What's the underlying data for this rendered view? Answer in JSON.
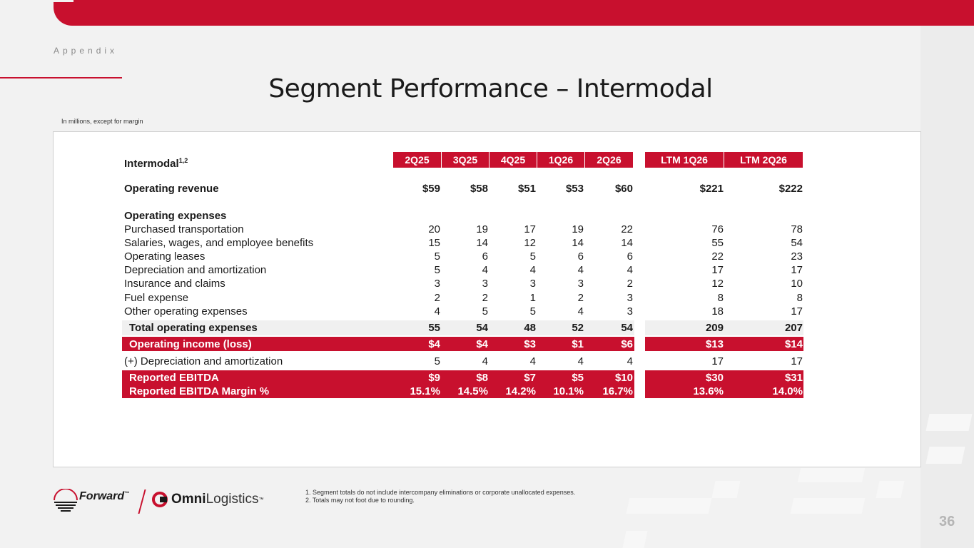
{
  "header": {
    "section": "Appendix"
  },
  "title": "Segment Performance – Intermodal",
  "subtitle": "In millions, except for margin",
  "table": {
    "segment": "Intermodal",
    "segment_sup": "1,2",
    "quarter_headers": [
      "2Q25",
      "3Q25",
      "4Q25",
      "1Q26",
      "2Q26"
    ],
    "ltm_headers": [
      "LTM 1Q26",
      "LTM 2Q26"
    ],
    "operating_revenue": {
      "label": "Operating revenue",
      "values": [
        "$59",
        "$58",
        "$51",
        "$53",
        "$60"
      ],
      "ltm": [
        "$221",
        "$222"
      ]
    },
    "operating_expenses_heading": "Operating expenses",
    "expense_rows": [
      {
        "label": "Purchased transportation",
        "values": [
          "20",
          "19",
          "17",
          "19",
          "22"
        ],
        "ltm": [
          "76",
          "78"
        ]
      },
      {
        "label": "Salaries, wages, and employee benefits",
        "values": [
          "15",
          "14",
          "12",
          "14",
          "14"
        ],
        "ltm": [
          "55",
          "54"
        ]
      },
      {
        "label": "Operating leases",
        "values": [
          "5",
          "6",
          "5",
          "6",
          "6"
        ],
        "ltm": [
          "22",
          "23"
        ]
      },
      {
        "label": "Depreciation and amortization",
        "values": [
          "5",
          "4",
          "4",
          "4",
          "4"
        ],
        "ltm": [
          "17",
          "17"
        ]
      },
      {
        "label": "Insurance and claims",
        "values": [
          "3",
          "3",
          "3",
          "3",
          "2"
        ],
        "ltm": [
          "12",
          "10"
        ]
      },
      {
        "label": "Fuel expense",
        "values": [
          "2",
          "2",
          "1",
          "2",
          "3"
        ],
        "ltm": [
          "8",
          "8"
        ]
      },
      {
        "label": "Other operating expenses",
        "values": [
          "4",
          "5",
          "5",
          "4",
          "3"
        ],
        "ltm": [
          "18",
          "17"
        ]
      }
    ],
    "total_operating_expenses": {
      "label": "Total operating expenses",
      "values": [
        "55",
        "54",
        "48",
        "52",
        "54"
      ],
      "ltm": [
        "209",
        "207"
      ]
    },
    "operating_income": {
      "label": "Operating income (loss)",
      "values": [
        "$4",
        "$4",
        "$3",
        "$1",
        "$6"
      ],
      "ltm": [
        "$13",
        "$14"
      ]
    },
    "plus_da": {
      "label": "(+) Depreciation and amortization",
      "values": [
        "5",
        "4",
        "4",
        "4",
        "4"
      ],
      "ltm": [
        "17",
        "17"
      ]
    },
    "reported_ebitda": {
      "label": "Reported EBITDA",
      "values": [
        "$9",
        "$8",
        "$7",
        "$5",
        "$10"
      ],
      "ltm": [
        "$30",
        "$31"
      ]
    },
    "reported_ebitda_margin": {
      "label": "Reported EBITDA Margin %",
      "values": [
        "15.1%",
        "14.5%",
        "14.2%",
        "10.1%",
        "16.7%"
      ],
      "ltm": [
        "13.6%",
        "14.0%"
      ]
    }
  },
  "footnotes": [
    "1.  Segment totals do not include intercompany eliminations or corporate unallocated expenses.",
    "2.  Totals may not foot due to rounding."
  ],
  "logos": {
    "forward": "Forward",
    "forward_tm": "™",
    "omni": "Omni",
    "logistics": "Logistics",
    "omni_tm": "™"
  },
  "page_number": "36",
  "colors": {
    "brand_red": "#c8102e",
    "panel_bg": "#ffffff",
    "page_bg": "#f2f2f2"
  }
}
